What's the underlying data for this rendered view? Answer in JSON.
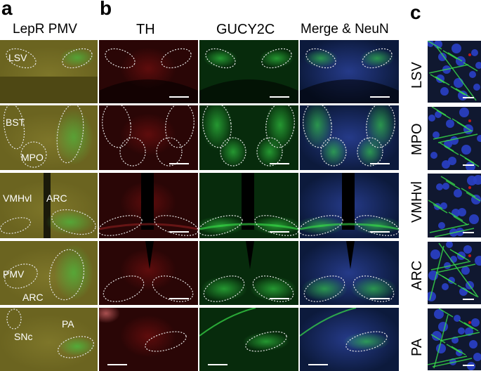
{
  "panels": {
    "a": {
      "letter": "a",
      "title": "LepR PMV",
      "rows": [
        {
          "labels": [
            "LSV"
          ]
        },
        {
          "labels": [
            "BST",
            "MPO"
          ]
        },
        {
          "labels": [
            "VMHvl",
            "ARC"
          ]
        },
        {
          "labels": [
            "PMV",
            "ARC"
          ]
        },
        {
          "labels": [
            "SNc",
            "PA"
          ]
        }
      ]
    },
    "b": {
      "letter": "b",
      "columns": [
        "TH",
        "GUCY2C",
        "Merge & NeuN"
      ]
    },
    "c": {
      "letter": "c",
      "rows": [
        "LSV",
        "MPO",
        "VMHvl",
        "ARC",
        "PA"
      ]
    }
  },
  "colors": {
    "panel_a_bg": "#6b6420",
    "th_bg": "#2a0606",
    "th_signal": "#c01818",
    "gucy_bg": "#072b0c",
    "gucy_signal": "#39e04a",
    "merge_bg": "#0c1a3c",
    "merge_blue": "#3a55c8",
    "dashed_outline": "#e6e6e6"
  }
}
